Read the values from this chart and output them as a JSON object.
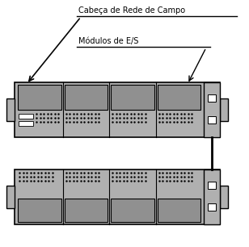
{
  "title1": "Cabeça de Rede de Campo",
  "title2": "Módulos de E/S",
  "bg_color": "#ffffff",
  "rack_light": "#c8c8c8",
  "rack_mid": "#b0b0b0",
  "rack_dark": "#909090",
  "outline": "#000000",
  "white": "#ffffff"
}
